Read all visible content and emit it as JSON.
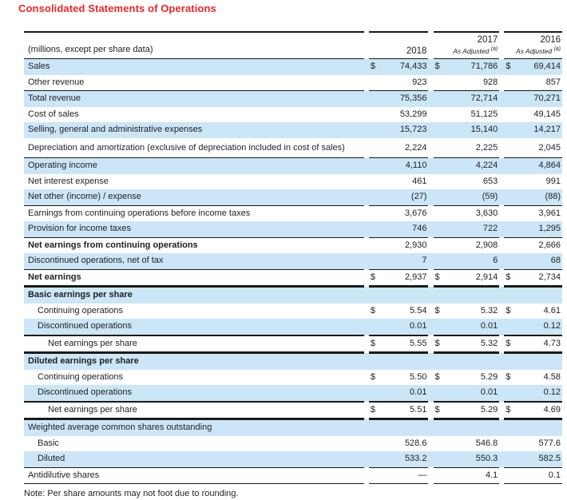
{
  "title": "Consolidated Statements of Operations",
  "note": "Note: Per share amounts may not foot due to rounding.",
  "colors": {
    "title_red": "#ee2524",
    "row_shade": "#cbe6f7",
    "rule": "#1a1a1a",
    "text": "#1f1f1f"
  },
  "table": {
    "caption": "(millions, except per share data)",
    "currency_symbol": "$",
    "columns": [
      {
        "year": "2018",
        "sub": "",
        "sup": ""
      },
      {
        "year": "2017",
        "sub": "As Adjusted",
        "sup": "(a)"
      },
      {
        "year": "2016",
        "sub": "As Adjusted",
        "sup": "(a)"
      }
    ],
    "rows": [
      {
        "label": "Sales",
        "dollar": true,
        "values": [
          "74,433",
          "71,786",
          "69,414"
        ],
        "shaded": true,
        "bold": false,
        "indent": 0,
        "rule_top": "none"
      },
      {
        "label": "Other revenue",
        "dollar": false,
        "values": [
          "923",
          "928",
          "857"
        ],
        "shaded": false,
        "bold": false,
        "indent": 0,
        "rule_top": "none"
      },
      {
        "label": "Total revenue",
        "dollar": false,
        "values": [
          "75,356",
          "72,714",
          "70,271"
        ],
        "shaded": true,
        "bold": false,
        "indent": 0,
        "rule_top": "thin"
      },
      {
        "label": "Cost of sales",
        "dollar": false,
        "values": [
          "53,299",
          "51,125",
          "49,145"
        ],
        "shaded": false,
        "bold": false,
        "indent": 0,
        "rule_top": "none"
      },
      {
        "label": "Selling, general and administrative expenses",
        "dollar": false,
        "values": [
          "15,723",
          "15,140",
          "14,217"
        ],
        "shaded": true,
        "bold": false,
        "indent": 0,
        "rule_top": "none"
      },
      {
        "label": "Depreciation and amortization (exclusive of depreciation included in cost of sales)",
        "dollar": false,
        "values": [
          "2,224",
          "2,225",
          "2,045"
        ],
        "shaded": false,
        "bold": false,
        "indent": 0,
        "rule_top": "none",
        "tall": true
      },
      {
        "label": "Operating income",
        "dollar": false,
        "values": [
          "4,110",
          "4,224",
          "4,864"
        ],
        "shaded": true,
        "bold": false,
        "indent": 0,
        "rule_top": "thin"
      },
      {
        "label": "Net interest expense",
        "dollar": false,
        "values": [
          "461",
          "653",
          "991"
        ],
        "shaded": false,
        "bold": false,
        "indent": 0,
        "rule_top": "none"
      },
      {
        "label": "Net other (income) / expense",
        "dollar": false,
        "values": [
          "(27)",
          "(59)",
          "(88)"
        ],
        "shaded": true,
        "bold": false,
        "indent": 0,
        "rule_top": "none"
      },
      {
        "label": "Earnings from continuing operations before income taxes",
        "dollar": false,
        "values": [
          "3,676",
          "3,630",
          "3,961"
        ],
        "shaded": false,
        "bold": false,
        "indent": 0,
        "rule_top": "thin"
      },
      {
        "label": "Provision for income taxes",
        "dollar": false,
        "values": [
          "746",
          "722",
          "1,295"
        ],
        "shaded": true,
        "bold": false,
        "indent": 0,
        "rule_top": "none"
      },
      {
        "label": "Net earnings from continuing operations",
        "dollar": false,
        "values": [
          "2,930",
          "2,908",
          "2,666"
        ],
        "shaded": false,
        "bold": true,
        "indent": 0,
        "rule_top": "thin"
      },
      {
        "label": "Discontinued operations, net of tax",
        "dollar": false,
        "values": [
          "7",
          "6",
          "68"
        ],
        "shaded": true,
        "bold": false,
        "indent": 0,
        "rule_top": "none"
      },
      {
        "label": "Net earnings",
        "dollar": true,
        "values": [
          "2,937",
          "2,914",
          "2,734"
        ],
        "shaded": false,
        "bold": true,
        "indent": 0,
        "rule_top": "thin"
      },
      {
        "label": "Basic earnings per share",
        "dollar": false,
        "values": [
          "",
          "",
          ""
        ],
        "shaded": true,
        "bold": true,
        "indent": 0,
        "rule_top": "thick"
      },
      {
        "label": "Continuing operations",
        "dollar": true,
        "values": [
          "5.54",
          "5.32",
          "4.61"
        ],
        "shaded": false,
        "bold": false,
        "indent": 1,
        "rule_top": "none"
      },
      {
        "label": "Discontinued operations",
        "dollar": false,
        "values": [
          "0.01",
          "0.01",
          "0.12"
        ],
        "shaded": true,
        "bold": false,
        "indent": 1,
        "rule_top": "none"
      },
      {
        "label": "Net earnings per share",
        "dollar": true,
        "values": [
          "5.55",
          "5.32",
          "4.73"
        ],
        "shaded": false,
        "bold": false,
        "indent": 2,
        "rule_top": "med"
      },
      {
        "label": "Diluted earnings per share",
        "dollar": false,
        "values": [
          "",
          "",
          ""
        ],
        "shaded": true,
        "bold": true,
        "indent": 0,
        "rule_top": "thick"
      },
      {
        "label": "Continuing operations",
        "dollar": true,
        "values": [
          "5.50",
          "5.29",
          "4.58"
        ],
        "shaded": false,
        "bold": false,
        "indent": 1,
        "rule_top": "none"
      },
      {
        "label": "Discontinued operations",
        "dollar": false,
        "values": [
          "0.01",
          "0.01",
          "0.12"
        ],
        "shaded": true,
        "bold": false,
        "indent": 1,
        "rule_top": "none"
      },
      {
        "label": "Net earnings per share",
        "dollar": true,
        "values": [
          "5.51",
          "5.29",
          "4.69"
        ],
        "shaded": false,
        "bold": false,
        "indent": 2,
        "rule_top": "med"
      },
      {
        "label": "Weighted average common shares outstanding",
        "dollar": false,
        "values": [
          "",
          "",
          ""
        ],
        "shaded": true,
        "bold": false,
        "indent": 0,
        "rule_top": "thick"
      },
      {
        "label": "Basic",
        "dollar": false,
        "values": [
          "528.6",
          "546.8",
          "577.6"
        ],
        "shaded": false,
        "bold": false,
        "indent": 1,
        "rule_top": "none"
      },
      {
        "label": "Diluted",
        "dollar": false,
        "values": [
          "533.2",
          "550.3",
          "582.5"
        ],
        "shaded": true,
        "bold": false,
        "indent": 1,
        "rule_top": "none"
      },
      {
        "label": "Antidilutive shares",
        "dollar": false,
        "values": [
          "—",
          "4.1",
          "0.1"
        ],
        "shaded": false,
        "bold": false,
        "indent": 0,
        "rule_top": "thin",
        "rule_bottom": "thin"
      }
    ]
  }
}
